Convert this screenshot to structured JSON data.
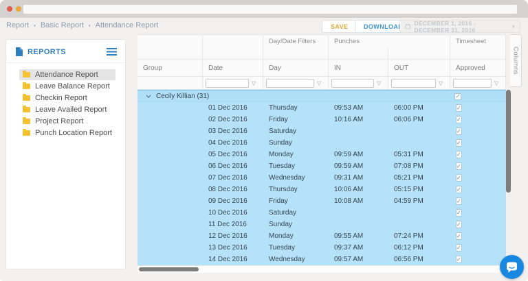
{
  "colors": {
    "save_accent": "#E3A83C",
    "download_accent": "#3D96D2",
    "reports_blue": "#2D7DBF",
    "folder_yellow": "#F2C230",
    "row_highlight": "#B5E2F8",
    "chat_blue": "#1787E0"
  },
  "icons": {
    "filter_glyph": "▽",
    "breadcrumb_separator": "•",
    "checkbox_check": "✓",
    "daterange_caret": "▾"
  },
  "breadcrumb": [
    "Report",
    "Basic Report",
    "Attendance Report"
  ],
  "toolbar": {
    "save_label": "SAVE",
    "download_label": "DOWNLOAD",
    "date_range": "DECEMBER 1, 2016 - DECEMBER 31, 2016"
  },
  "sidebar": {
    "title": "REPORTS",
    "items": [
      {
        "label": "Attendance Report",
        "active": true
      },
      {
        "label": "Leave Balance Report",
        "active": false
      },
      {
        "label": "Checkin Report",
        "active": false
      },
      {
        "label": "Leave Availed Report",
        "active": false
      },
      {
        "label": "Project Report",
        "active": false
      },
      {
        "label": "Punch Location Report",
        "active": false
      }
    ]
  },
  "table": {
    "band_headers": {
      "day_date_filters": "Day/Date Filters",
      "punches": "Punches",
      "timesheet": "Timesheet"
    },
    "columns": [
      "Group",
      "Date",
      "Day",
      "IN",
      "OUT",
      "Approved"
    ],
    "filters": [
      "date",
      "day",
      "in",
      "out",
      "approved"
    ],
    "group_row": {
      "label": "Cecily Killian (31)",
      "approved": true
    },
    "rows": [
      {
        "date": "01 Dec 2016",
        "day": "Thursday",
        "in": "09:53 AM",
        "out": "06:00 PM",
        "approved": true
      },
      {
        "date": "02 Dec 2016",
        "day": "Friday",
        "in": "10:16 AM",
        "out": "06:06 PM",
        "approved": true
      },
      {
        "date": "03 Dec 2016",
        "day": "Saturday",
        "in": "",
        "out": "",
        "approved": true
      },
      {
        "date": "04 Dec 2016",
        "day": "Sunday",
        "in": "",
        "out": "",
        "approved": true
      },
      {
        "date": "05 Dec 2016",
        "day": "Monday",
        "in": "09:59 AM",
        "out": "05:31 PM",
        "approved": true
      },
      {
        "date": "06 Dec 2016",
        "day": "Tuesday",
        "in": "09:59 AM",
        "out": "07:08 PM",
        "approved": true
      },
      {
        "date": "07 Dec 2016",
        "day": "Wednesday",
        "in": "09:31 AM",
        "out": "05:21 PM",
        "approved": true
      },
      {
        "date": "08 Dec 2016",
        "day": "Thursday",
        "in": "10:06 AM",
        "out": "05:15 PM",
        "approved": true
      },
      {
        "date": "09 Dec 2016",
        "day": "Friday",
        "in": "10:08 AM",
        "out": "04:59 PM",
        "approved": true
      },
      {
        "date": "10 Dec 2016",
        "day": "Saturday",
        "in": "",
        "out": "",
        "approved": true
      },
      {
        "date": "11 Dec 2016",
        "day": "Sunday",
        "in": "",
        "out": "",
        "approved": true
      },
      {
        "date": "12 Dec 2016",
        "day": "Monday",
        "in": "09:55 AM",
        "out": "07:24 PM",
        "approved": true
      },
      {
        "date": "13 Dec 2016",
        "day": "Tuesday",
        "in": "09:37 AM",
        "out": "06:12 PM",
        "approved": true
      },
      {
        "date": "14 Dec 2016",
        "day": "Wednesday",
        "in": "09:57 AM",
        "out": "06:56 PM",
        "approved": true
      }
    ]
  },
  "columns_tab_label": "Columns"
}
